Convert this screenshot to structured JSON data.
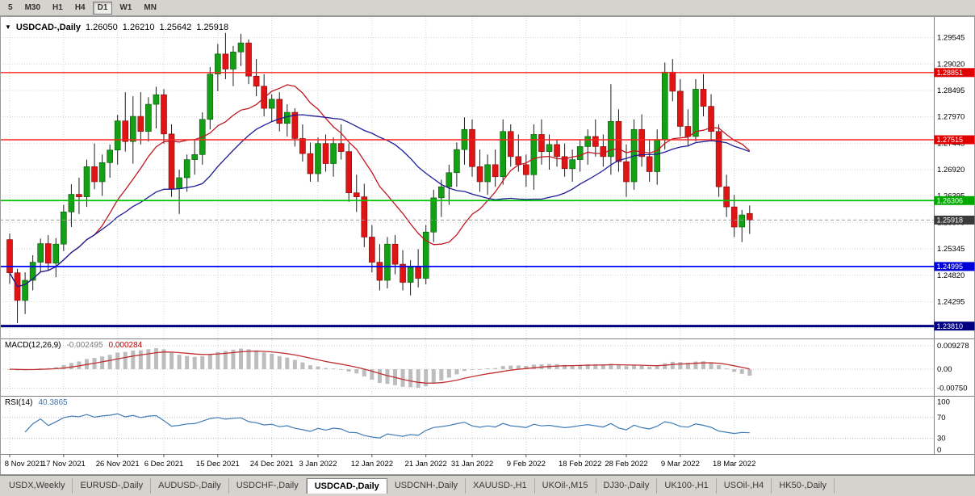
{
  "toolbar": {
    "timeframes": [
      {
        "label": "5",
        "active": false
      },
      {
        "label": "M30",
        "active": false
      },
      {
        "label": "H1",
        "active": false
      },
      {
        "label": "H4",
        "active": false
      },
      {
        "label": "D1",
        "active": true
      },
      {
        "label": "W1",
        "active": false
      },
      {
        "label": "MN",
        "active": false
      }
    ]
  },
  "chart": {
    "dropdown_icon": "▼",
    "title": "USDCAD-,Daily",
    "ohlc": {
      "open": "1.26050",
      "high": "1.26210",
      "low": "1.25642",
      "close": "1.25918"
    },
    "y_axis_labels": [
      "1.29545",
      "1.29020",
      "1.28495",
      "1.27970",
      "1.27445",
      "1.26920",
      "1.26395",
      "1.25870",
      "1.25345",
      "1.24820",
      "1.24295",
      "1.23770"
    ],
    "x_axis_labels": [
      {
        "text": "8 Nov 2021",
        "i": 0
      },
      {
        "text": "17 Nov 2021",
        "i": 7
      },
      {
        "text": "26 Nov 2021",
        "i": 14
      },
      {
        "text": "6 Dec 2021",
        "i": 20
      },
      {
        "text": "15 Dec 2021",
        "i": 27
      },
      {
        "text": "24 Dec 2021",
        "i": 34
      },
      {
        "text": "3 Jan 2022",
        "i": 40
      },
      {
        "text": "12 Jan 2022",
        "i": 47
      },
      {
        "text": "21 Jan 2022",
        "i": 54
      },
      {
        "text": "31 Jan 2022",
        "i": 60
      },
      {
        "text": "9 Feb 2022",
        "i": 67
      },
      {
        "text": "18 Feb 2022",
        "i": 74
      },
      {
        "text": "28 Feb 2022",
        "i": 80
      },
      {
        "text": "9 Mar 2022",
        "i": 87
      },
      {
        "text": "18 Mar 2022",
        "i": 94
      }
    ],
    "hlines": [
      {
        "label": "1.28851",
        "price": 1.28851,
        "color": "#ff2020",
        "badge": "#e00000",
        "w": 1.4
      },
      {
        "label": "1.27515",
        "price": 1.27515,
        "color": "#ff2020",
        "badge": "#e00000",
        "w": 1.4
      },
      {
        "label": "1.26306",
        "price": 1.26306,
        "color": "#00c000",
        "badge": "#00a800",
        "w": 1.8
      },
      {
        "label": "1.24995",
        "price": 1.24995,
        "color": "#0000ff",
        "badge": "#0000d8",
        "w": 1.8
      },
      {
        "label": "1.23810",
        "price": 1.2381,
        "color": "#000080",
        "badge": "#000080",
        "w": 3
      }
    ],
    "current_price": {
      "label": "1.25918",
      "price": 1.25918,
      "badge": "#3a3a3a",
      "line_color": "#9a9a9a"
    },
    "colors": {
      "bull": "#14a014",
      "bear": "#e01414",
      "wick": "#1c1c1c",
      "grid": "#d4d4d4",
      "background": "#ffffff"
    }
  },
  "chart_data": {
    "type": "candlestick",
    "symbol": "USDCAD-",
    "timeframe": "Daily",
    "candles_ohlc": [
      [
        1.2553,
        1.2565,
        1.2465,
        1.2487
      ],
      [
        1.2487,
        1.2495,
        1.2387,
        1.2432
      ],
      [
        1.2432,
        1.2488,
        1.2405,
        1.2472
      ],
      [
        1.2472,
        1.2522,
        1.2452,
        1.2508
      ],
      [
        1.2508,
        1.2555,
        1.2488,
        1.2545
      ],
      [
        1.2545,
        1.2562,
        1.2492,
        1.2506
      ],
      [
        1.2506,
        1.2556,
        1.2478,
        1.2544
      ],
      [
        1.2544,
        1.2622,
        1.253,
        1.2608
      ],
      [
        1.2608,
        1.2663,
        1.2578,
        1.2643
      ],
      [
        1.2643,
        1.2676,
        1.2604,
        1.2638
      ],
      [
        1.2638,
        1.2712,
        1.2618,
        1.2698
      ],
      [
        1.2698,
        1.2744,
        1.2653,
        1.2668
      ],
      [
        1.2668,
        1.2722,
        1.264,
        1.2706
      ],
      [
        1.2706,
        1.2742,
        1.2676,
        1.2731
      ],
      [
        1.2731,
        1.2801,
        1.2702,
        1.2789
      ],
      [
        1.2789,
        1.2846,
        1.2728,
        1.2748
      ],
      [
        1.2748,
        1.2838,
        1.2704,
        1.2798
      ],
      [
        1.2798,
        1.2846,
        1.2742,
        1.2768
      ],
      [
        1.2768,
        1.2836,
        1.2748,
        1.2822
      ],
      [
        1.2822,
        1.2857,
        1.2774,
        1.2841
      ],
      [
        1.2841,
        1.2852,
        1.2744,
        1.2763
      ],
      [
        1.2763,
        1.2782,
        1.2638,
        1.2654
      ],
      [
        1.2654,
        1.2692,
        1.2604,
        1.2676
      ],
      [
        1.2676,
        1.2722,
        1.2648,
        1.2712
      ],
      [
        1.2712,
        1.2752,
        1.2682,
        1.2722
      ],
      [
        1.2722,
        1.2806,
        1.2702,
        1.2792
      ],
      [
        1.2792,
        1.2896,
        1.2772,
        1.2882
      ],
      [
        1.2882,
        1.2942,
        1.2848,
        1.2922
      ],
      [
        1.2922,
        1.2964,
        1.2872,
        1.2892
      ],
      [
        1.2892,
        1.2938,
        1.2858,
        1.2926
      ],
      [
        1.2926,
        1.2962,
        1.2898,
        1.2944
      ],
      [
        1.2944,
        1.2951,
        1.2862,
        1.2878
      ],
      [
        1.2878,
        1.2912,
        1.2838,
        1.2858
      ],
      [
        1.2858,
        1.2882,
        1.2798,
        1.2814
      ],
      [
        1.2814,
        1.2842,
        1.2788,
        1.2832
      ],
      [
        1.2832,
        1.2846,
        1.2768,
        1.2784
      ],
      [
        1.2784,
        1.2822,
        1.2758,
        1.2806
      ],
      [
        1.2806,
        1.2814,
        1.2738,
        1.2754
      ],
      [
        1.2754,
        1.2782,
        1.2708,
        1.2724
      ],
      [
        1.2724,
        1.2746,
        1.2668,
        1.2684
      ],
      [
        1.2684,
        1.2756,
        1.2668,
        1.2744
      ],
      [
        1.2744,
        1.2762,
        1.2688,
        1.2704
      ],
      [
        1.2704,
        1.2756,
        1.2678,
        1.2744
      ],
      [
        1.2744,
        1.2782,
        1.2712,
        1.2728
      ],
      [
        1.2728,
        1.2744,
        1.2628,
        1.2646
      ],
      [
        1.2646,
        1.2682,
        1.2608,
        1.2638
      ],
      [
        1.2638,
        1.2664,
        1.2538,
        1.2558
      ],
      [
        1.2558,
        1.2582,
        1.2488,
        1.2508
      ],
      [
        1.2508,
        1.2544,
        1.2452,
        1.2472
      ],
      [
        1.2472,
        1.2558,
        1.2456,
        1.2544
      ],
      [
        1.2544,
        1.2562,
        1.2484,
        1.2504
      ],
      [
        1.2504,
        1.2532,
        1.2452,
        1.2468
      ],
      [
        1.2468,
        1.2512,
        1.2442,
        1.2498
      ],
      [
        1.2498,
        1.2534,
        1.2458,
        1.2476
      ],
      [
        1.2476,
        1.2582,
        1.2464,
        1.2568
      ],
      [
        1.2568,
        1.2652,
        1.2548,
        1.2636
      ],
      [
        1.2636,
        1.2672,
        1.2598,
        1.2658
      ],
      [
        1.2658,
        1.2702,
        1.2622,
        1.2686
      ],
      [
        1.2686,
        1.2746,
        1.2658,
        1.2732
      ],
      [
        1.2732,
        1.2796,
        1.2702,
        1.2772
      ],
      [
        1.2772,
        1.2792,
        1.2678,
        1.2698
      ],
      [
        1.2698,
        1.2732,
        1.2648,
        1.2668
      ],
      [
        1.2668,
        1.2722,
        1.2642,
        1.2702
      ],
      [
        1.2702,
        1.2732,
        1.2658,
        1.2678
      ],
      [
        1.2678,
        1.2792,
        1.2662,
        1.2768
      ],
      [
        1.2768,
        1.2782,
        1.2698,
        1.2718
      ],
      [
        1.2718,
        1.2762,
        1.2688,
        1.2702
      ],
      [
        1.2702,
        1.2722,
        1.2658,
        1.2682
      ],
      [
        1.2682,
        1.2782,
        1.2652,
        1.2762
      ],
      [
        1.2762,
        1.2792,
        1.2702,
        1.2728
      ],
      [
        1.2728,
        1.2762,
        1.2692,
        1.2742
      ],
      [
        1.2742,
        1.2752,
        1.2698,
        1.2718
      ],
      [
        1.2718,
        1.2744,
        1.2678,
        1.2694
      ],
      [
        1.2694,
        1.2732,
        1.2668,
        1.2712
      ],
      [
        1.2712,
        1.2752,
        1.2688,
        1.2738
      ],
      [
        1.2738,
        1.2772,
        1.2702,
        1.2758
      ],
      [
        1.2758,
        1.2792,
        1.2718,
        1.2738
      ],
      [
        1.2738,
        1.2762,
        1.2698,
        1.2718
      ],
      [
        1.2718,
        1.2862,
        1.2682,
        1.2788
      ],
      [
        1.2788,
        1.2812,
        1.2688,
        1.2708
      ],
      [
        1.2708,
        1.2742,
        1.2638,
        1.2668
      ],
      [
        1.2668,
        1.2792,
        1.2652,
        1.2772
      ],
      [
        1.2772,
        1.2802,
        1.2698,
        1.2718
      ],
      [
        1.2718,
        1.2752,
        1.2668,
        1.2688
      ],
      [
        1.2688,
        1.2772,
        1.2662,
        1.2752
      ],
      [
        1.2752,
        1.2905,
        1.2732,
        1.2886
      ],
      [
        1.2886,
        1.2912,
        1.2828,
        1.2848
      ],
      [
        1.2848,
        1.2872,
        1.2758,
        1.2778
      ],
      [
        1.2778,
        1.2812,
        1.2738,
        1.2758
      ],
      [
        1.2758,
        1.2872,
        1.2748,
        1.2852
      ],
      [
        1.2852,
        1.2882,
        1.2798,
        1.2818
      ],
      [
        1.2818,
        1.2842,
        1.2748,
        1.2768
      ],
      [
        1.2768,
        1.2782,
        1.2638,
        1.2658
      ],
      [
        1.2658,
        1.2682,
        1.2598,
        1.2618
      ],
      [
        1.2618,
        1.2642,
        1.2558,
        1.2578
      ],
      [
        1.2578,
        1.2612,
        1.2548,
        1.2602
      ],
      [
        1.2605,
        1.2621,
        1.25642,
        1.25918
      ]
    ],
    "moving_averages": [
      {
        "period": 12,
        "color": "#c01820"
      },
      {
        "period": 26,
        "color": "#1c1c96"
      }
    ],
    "macd": {
      "label": "MACD(12,26,9)",
      "fast": 12,
      "slow": 26,
      "signal": 9,
      "main_value": "-0.002495",
      "signal_value": "0.000284",
      "axis_labels": [
        "0.009278",
        "0.00",
        "-0.00750"
      ],
      "histogram_color": "#bdbdbd",
      "signal_color": "#c03030"
    },
    "rsi": {
      "label": "RSI(14)",
      "period": 14,
      "value": "40.3865",
      "axis_labels": [
        "100",
        "70",
        "30",
        "0"
      ],
      "levels": [
        70,
        30
      ],
      "line_color": "#3f7cb6"
    }
  },
  "tabs": [
    {
      "label": "USDX,Weekly",
      "active": false
    },
    {
      "label": "EURUSD-,Daily",
      "active": false
    },
    {
      "label": "AUDUSD-,Daily",
      "active": false
    },
    {
      "label": "USDCHF-,Daily",
      "active": false
    },
    {
      "label": "USDCAD-,Daily",
      "active": true
    },
    {
      "label": "USDCNH-,Daily",
      "active": false
    },
    {
      "label": "XAUUSD-,H1",
      "active": false
    },
    {
      "label": "UKOil-,M15",
      "active": false
    },
    {
      "label": "DJ30-,Daily",
      "active": false
    },
    {
      "label": "UK100-,H1",
      "active": false
    },
    {
      "label": "USOil-,H4",
      "active": false
    },
    {
      "label": "HK50-,Daily",
      "active": false
    }
  ]
}
